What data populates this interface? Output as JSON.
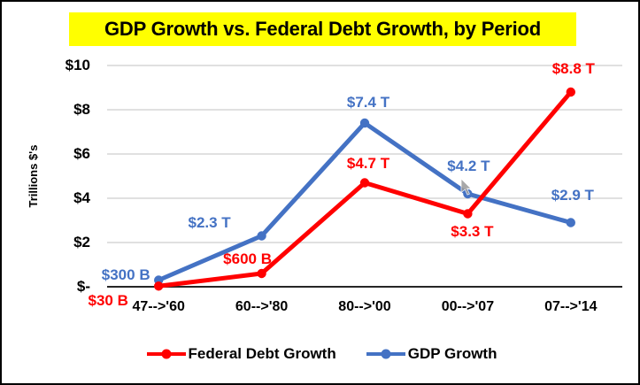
{
  "title": {
    "text": "GDP Growth vs. Federal Debt Growth, by Period",
    "highlight_color": "#FFFF00",
    "text_color": "#000000"
  },
  "chart_data": {
    "type": "line",
    "title": "GDP Growth vs. Federal Debt Growth, by Period",
    "categories": [
      "47-->'60",
      "60-->'80",
      "80-->'00",
      "00-->'07",
      "07-->'14"
    ],
    "series": [
      {
        "name": "Federal Debt Growth",
        "color": "#FF0000",
        "values": [
          0.03,
          0.6,
          4.7,
          3.3,
          8.8
        ],
        "point_labels": [
          "$30 B",
          "$600 B",
          "$4.7 T",
          "$3.3 T",
          "$8.8 T"
        ]
      },
      {
        "name": "GDP Growth",
        "color": "#4472C4",
        "values": [
          0.3,
          2.3,
          7.4,
          4.2,
          2.9
        ],
        "point_labels": [
          "$300 B",
          "$2.3 T",
          "$7.4 T",
          "$4.2 T",
          "$2.9 T"
        ]
      }
    ],
    "xlabel": "",
    "ylabel": "Trillions $'s",
    "ylim": [
      0,
      10
    ],
    "yticks": [
      0,
      2,
      4,
      6,
      8,
      10
    ],
    "ytick_labels": [
      "$-",
      "$2",
      "$4",
      "$6",
      "$8",
      "$10"
    ],
    "grid": true,
    "legend_position": "bottom",
    "colors": {
      "gridline": "#D6D6D6",
      "axis_line": "#262626",
      "cursor": "#9A9A9A"
    }
  }
}
